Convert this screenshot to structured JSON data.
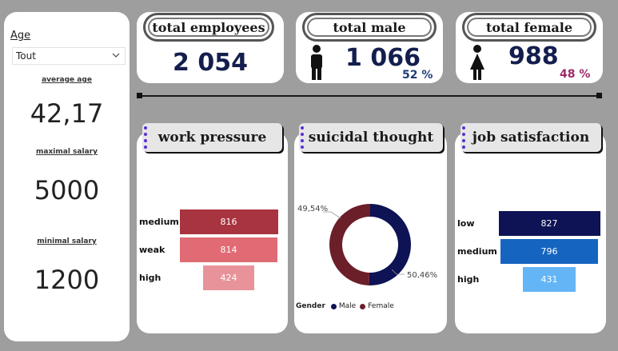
{
  "filters": {
    "age": {
      "label": "Age",
      "value": "Tout"
    }
  },
  "kpis_left": [
    {
      "label": "average age",
      "value": "42,17"
    },
    {
      "label": "maximal salary",
      "value": "5000"
    },
    {
      "label": "minimal salary",
      "value": "1200"
    }
  ],
  "cards": {
    "total_employees": {
      "title": "total employees",
      "value": "2 054"
    },
    "total_male": {
      "title": "total male",
      "value": "1 066",
      "pct": "52 %"
    },
    "total_female": {
      "title": "total female",
      "value": "988",
      "pct": "48 %"
    }
  },
  "colors": {
    "navy": "#0d1354",
    "maroon": "#6b1f28",
    "pressure": [
      "#a8343f",
      "#e06b74",
      "#e8939a"
    ],
    "satisfaction": [
      "#0d1354",
      "#1565c0",
      "#64b5f6"
    ],
    "female_pct": "#9c2a6b",
    "male_pct": "#1f3d7a"
  },
  "work_pressure": {
    "title": "work pressure",
    "chart_data": {
      "type": "bar",
      "categories": [
        "medium",
        "weak",
        "high"
      ],
      "values": [
        816,
        814,
        424
      ]
    }
  },
  "suicidal_thought": {
    "title": "suicidal thought",
    "chart_data": {
      "type": "pie",
      "categories": [
        "Male",
        "Female"
      ],
      "values": [
        50.46,
        49.54
      ],
      "labels": [
        "50,46%",
        "49,54%"
      ],
      "legend_title": "Gender"
    }
  },
  "job_satisfaction": {
    "title": "job satisfaction",
    "chart_data": {
      "type": "bar",
      "categories": [
        "low",
        "medium",
        "high"
      ],
      "values": [
        827,
        796,
        431
      ]
    }
  }
}
